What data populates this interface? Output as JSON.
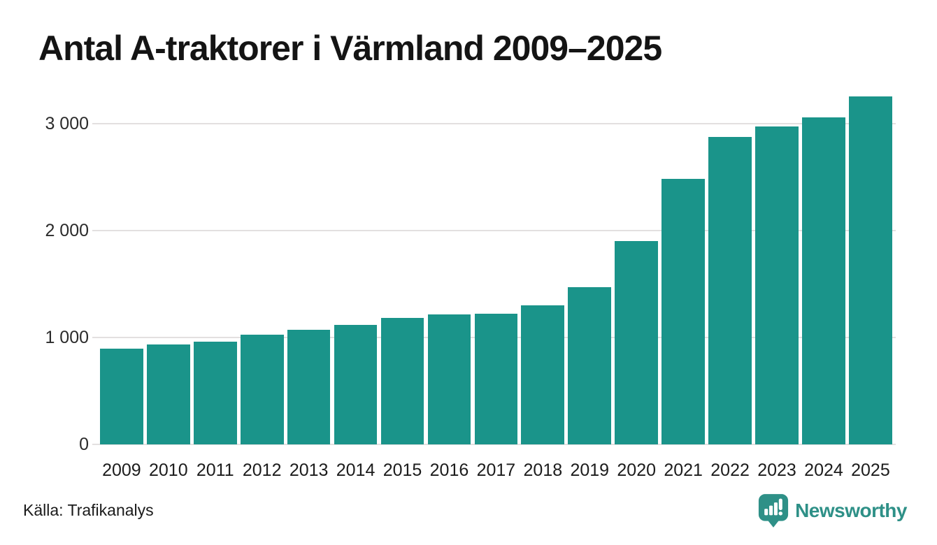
{
  "header": {
    "title": "Antal A-traktorer i Värmland 2009–2025"
  },
  "footer": {
    "source_label": "Källa: Trafikanalys",
    "brand_name": "Newsworthy"
  },
  "colors": {
    "bar": "#1a948a",
    "title_text": "#141414",
    "axis_label": "#1c1c1c",
    "gridline": "#e3e0e0",
    "brand_teal": "#2e9087"
  },
  "chart_data": {
    "type": "bar",
    "title": "Antal A-traktorer i Värmland 2009–2025",
    "categories": [
      "2009",
      "2010",
      "2011",
      "2012",
      "2013",
      "2014",
      "2015",
      "2016",
      "2017",
      "2018",
      "2019",
      "2020",
      "2021",
      "2022",
      "2023",
      "2024",
      "2025"
    ],
    "values": [
      895,
      935,
      960,
      1025,
      1075,
      1115,
      1180,
      1215,
      1220,
      1300,
      1470,
      1905,
      2485,
      2875,
      2975,
      3060,
      3255
    ],
    "xlabel": "",
    "ylabel": "",
    "ylim": [
      0,
      3400
    ],
    "yticks": [
      {
        "value": 0,
        "label": "0"
      },
      {
        "value": 1000,
        "label": "1 000"
      },
      {
        "value": 2000,
        "label": "2 000"
      },
      {
        "value": 3000,
        "label": "3 000"
      }
    ],
    "grid": "horizontal-only",
    "legend": "none",
    "bar_color": "#1a948a",
    "source": "Källa: Trafikanalys"
  }
}
